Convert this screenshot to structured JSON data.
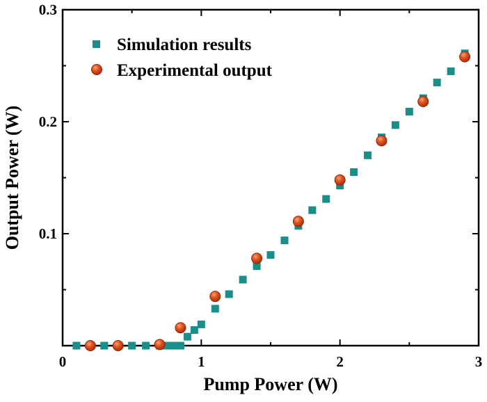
{
  "chart_data": {
    "type": "scatter",
    "title": "",
    "xlabel": "Pump Power (W)",
    "ylabel": "Output Power (W)",
    "xlim": [
      0,
      3
    ],
    "ylim": [
      0,
      0.3
    ],
    "xticks": [
      "0",
      "1",
      "2",
      "3"
    ],
    "yticks": [
      "0.1",
      "0.2",
      "0.3"
    ],
    "grid": false,
    "legend_position": "top-left",
    "series": [
      {
        "name": "Simulation results",
        "marker": "square",
        "color": "#1a8f8a",
        "x": [
          0.1,
          0.2,
          0.3,
          0.4,
          0.5,
          0.6,
          0.7,
          0.75,
          0.78,
          0.8,
          0.82,
          0.85,
          0.9,
          0.95,
          1.0,
          1.1,
          1.2,
          1.3,
          1.4,
          1.5,
          1.6,
          1.7,
          1.8,
          1.9,
          2.0,
          2.1,
          2.2,
          2.3,
          2.4,
          2.5,
          2.6,
          2.7,
          2.8,
          2.9
        ],
        "y": [
          0,
          0,
          0,
          0,
          0,
          0,
          0,
          0,
          0,
          0,
          0,
          0,
          0.008,
          0.014,
          0.019,
          0.033,
          0.046,
          0.059,
          0.071,
          0.081,
          0.094,
          0.107,
          0.121,
          0.131,
          0.143,
          0.155,
          0.17,
          0.186,
          0.197,
          0.209,
          0.221,
          0.235,
          0.245,
          0.261
        ]
      },
      {
        "name": "Experimental output",
        "marker": "circle",
        "color": "#d9431b",
        "x": [
          0.2,
          0.4,
          0.7,
          0.85,
          1.1,
          1.4,
          1.7,
          2.0,
          2.3,
          2.6,
          2.9
        ],
        "y": [
          0,
          0,
          0.001,
          0.016,
          0.044,
          0.078,
          0.111,
          0.148,
          0.183,
          0.218,
          0.258
        ]
      }
    ]
  }
}
